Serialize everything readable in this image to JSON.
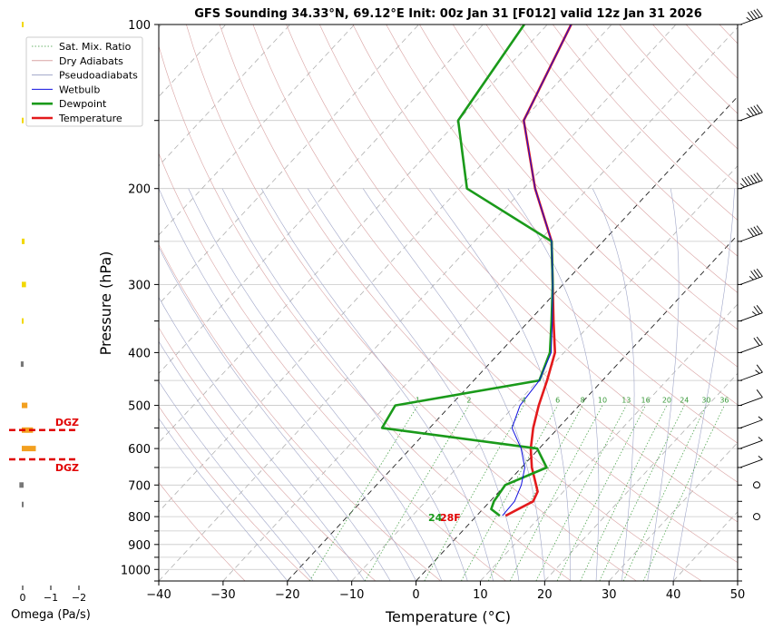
{
  "title": "GFS Sounding 34.33°N, 69.12°E Init: 00z Jan 31 [F012] valid 12z Jan 31 2026",
  "chart_data": {
    "type": "line",
    "subtype": "skew-t log-p sounding",
    "xlabel": "Temperature (°C)",
    "ylabel": "Pressure (hPa)",
    "xlim": [
      -40,
      50
    ],
    "ylim": [
      1050,
      100
    ],
    "y_scale": "log",
    "x_ticks": [
      -40,
      -30,
      -20,
      -10,
      0,
      10,
      20,
      30,
      40,
      50
    ],
    "y_ticks": [
      100,
      200,
      300,
      400,
      500,
      600,
      700,
      800,
      900,
      1000
    ],
    "grid": true,
    "legend_position": "top-left",
    "legend": [
      "Sat. Mix. Ratio",
      "Dry Adiabats",
      "Pseudoadiabats",
      "Wetbulb",
      "Dewpoint",
      "Temperature"
    ],
    "mixing_ratio_labels": [
      "1",
      "2",
      "4",
      "6",
      "8",
      "10",
      "13",
      "16",
      "20",
      "24",
      "30",
      "36"
    ],
    "series": [
      {
        "name": "Temperature",
        "color": "#e31a1c",
        "points": [
          [
            797,
            4.5
          ],
          [
            775,
            5.5
          ],
          [
            750,
            6.7
          ],
          [
            720,
            6.0
          ],
          [
            700,
            4.8
          ],
          [
            650,
            1.6
          ],
          [
            600,
            -1.3
          ],
          [
            550,
            -3.9
          ],
          [
            500,
            -6.3
          ],
          [
            450,
            -8.6
          ],
          [
            400,
            -11.4
          ],
          [
            350,
            -16.2
          ],
          [
            300,
            -21.6
          ],
          [
            250,
            -28.0
          ],
          [
            200,
            -38.2
          ],
          [
            150,
            -49.8
          ],
          [
            100,
            -56.3
          ]
        ]
      },
      {
        "name": "Dewpoint",
        "color": "#1a9a1a",
        "points": [
          [
            797,
            3.6
          ],
          [
            775,
            1.3
          ],
          [
            750,
            0.6
          ],
          [
            700,
            0.0
          ],
          [
            650,
            3.9
          ],
          [
            600,
            -0.3
          ],
          [
            550,
            -27.4
          ],
          [
            500,
            -28.6
          ],
          [
            450,
            -9.8
          ],
          [
            400,
            -12.2
          ],
          [
            350,
            -16.5
          ],
          [
            300,
            -21.6
          ],
          [
            250,
            -28.0
          ],
          [
            200,
            -48.8
          ],
          [
            150,
            -60.0
          ],
          [
            100,
            -63.6
          ]
        ]
      },
      {
        "name": "Wetbulb",
        "color": "#1010e0",
        "points": [
          [
            797,
            4.0
          ],
          [
            750,
            3.8
          ],
          [
            700,
            2.5
          ],
          [
            650,
            0.5
          ],
          [
            600,
            -2.8
          ],
          [
            550,
            -7.2
          ],
          [
            500,
            -9.2
          ],
          [
            450,
            -9.8
          ],
          [
            400,
            -12.0
          ],
          [
            350,
            -16.4
          ],
          [
            300,
            -21.6
          ],
          [
            250,
            -28.0
          ],
          [
            200,
            -38.2
          ],
          [
            150,
            -49.8
          ],
          [
            100,
            -56.3
          ]
        ]
      }
    ],
    "surface_labels": {
      "dewpoint": "24",
      "temperature": "28F"
    },
    "dgz": {
      "label": "DGZ",
      "pressures": [
        555,
        628
      ]
    },
    "omega": {
      "xlabel": "Omega (Pa/s)",
      "x_ticks": [
        "0",
        "−1",
        "−2"
      ],
      "values": [
        [
          100,
          0.0
        ],
        [
          150,
          -0.05
        ],
        [
          250,
          -0.1
        ],
        [
          300,
          -0.15
        ],
        [
          350,
          -0.05
        ],
        [
          420,
          0.1
        ],
        [
          500,
          -0.2
        ],
        [
          555,
          -0.4
        ],
        [
          600,
          -0.5
        ],
        [
          700,
          0.15
        ],
        [
          760,
          0.05
        ]
      ]
    },
    "wind_barbs_speed_kt": [
      [
        100,
        45
      ],
      [
        150,
        45
      ],
      [
        200,
        65
      ],
      [
        250,
        40
      ],
      [
        300,
        35
      ],
      [
        350,
        25
      ],
      [
        400,
        20
      ],
      [
        450,
        15
      ],
      [
        500,
        10
      ],
      [
        550,
        5
      ],
      [
        600,
        5
      ],
      [
        650,
        5
      ],
      [
        700,
        0
      ],
      [
        800,
        0
      ]
    ]
  }
}
